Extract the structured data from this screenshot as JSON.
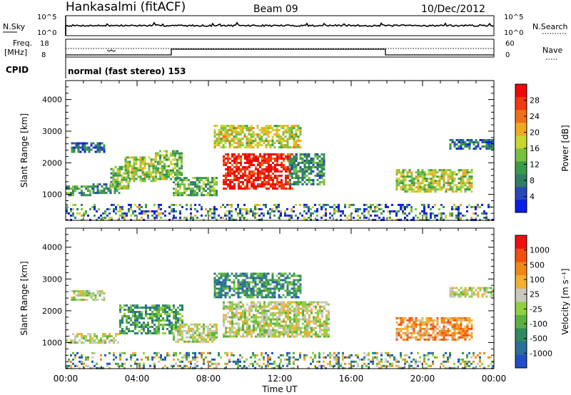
{
  "header": {
    "station": "Hankasalmi (fitACF)",
    "beam": "Beam 09",
    "date": "10/Dec/2012"
  },
  "noise_panel": {
    "left_label": "N.Sky",
    "right_label": "N.Search",
    "left_ticks": [
      "10^5",
      "10^0"
    ],
    "right_ticks": [
      "10^5",
      "10^0"
    ]
  },
  "freq_panel": {
    "label_line1": "Freq.",
    "label_line2": "[MHz]",
    "right_label": "Nave",
    "left_ticks": [
      "18",
      "8"
    ],
    "right_ticks": [
      "60",
      "0"
    ]
  },
  "cpid": {
    "label": "CPID",
    "text": "normal (fast stereo) 153"
  },
  "chart_data": [
    {
      "type": "heatmap",
      "title": "",
      "xlabel": "Time UT",
      "ylabel": "Slant Range [km]",
      "xlim": [
        "00:00",
        "24:00"
      ],
      "ylim": [
        180,
        4600
      ],
      "y_ticks": [
        "4000",
        "3000",
        "2000",
        "1000"
      ],
      "x_ticks": [
        "00:00",
        "04:00",
        "08:00",
        "12:00",
        "16:00",
        "20:00",
        "00:00"
      ],
      "colorbar": {
        "label": "Power [dB]",
        "tick_labels": [
          "28",
          "24",
          "20",
          "16",
          "12",
          "8",
          "4"
        ],
        "range": [
          0,
          30
        ],
        "colors": [
          "#0a1ee6",
          "#2a47b8",
          "#2f7d66",
          "#3a9a4a",
          "#78c040",
          "#c8d630",
          "#f0a820",
          "#f07018",
          "#f03a10",
          "#f00808"
        ]
      },
      "regions": [
        {
          "t0": 0.3,
          "t1": 2.2,
          "r0": 2350,
          "r1": 2650,
          "level": 0.22
        },
        {
          "t0": 0.0,
          "t1": 1.5,
          "r0": 1000,
          "r1": 1280,
          "level": 0.35
        },
        {
          "t0": 1.5,
          "t1": 3.0,
          "r0": 1050,
          "r1": 1350,
          "level": 0.3
        },
        {
          "t0": 2.5,
          "t1": 3.5,
          "r0": 1200,
          "r1": 1900,
          "level": 0.45
        },
        {
          "t0": 3.3,
          "t1": 5.0,
          "r0": 1400,
          "r1": 2200,
          "level": 0.5
        },
        {
          "t0": 5.0,
          "t1": 6.5,
          "r0": 1500,
          "r1": 2400,
          "level": 0.45
        },
        {
          "t0": 6.0,
          "t1": 8.5,
          "r0": 1000,
          "r1": 1550,
          "level": 0.4
        },
        {
          "t0": 8.3,
          "t1": 13.2,
          "r0": 2500,
          "r1": 3200,
          "level": 0.55
        },
        {
          "t0": 8.8,
          "t1": 13.0,
          "r0": 1200,
          "r1": 2300,
          "level": 0.92
        },
        {
          "t0": 12.5,
          "t1": 14.5,
          "r0": 1300,
          "r1": 2300,
          "level": 0.3
        },
        {
          "t0": 18.5,
          "t1": 22.8,
          "r0": 1100,
          "r1": 1800,
          "level": 0.5
        },
        {
          "t0": 21.5,
          "t1": 24.0,
          "r0": 2450,
          "r1": 2750,
          "level": 0.22
        },
        {
          "t0": 0.0,
          "t1": 24.0,
          "r0": 200,
          "r1": 700,
          "level": 0.25
        }
      ]
    },
    {
      "type": "heatmap",
      "title": "",
      "xlabel": "Time UT",
      "ylabel": "Slant Range [km]",
      "xlim": [
        "00:00",
        "24:00"
      ],
      "ylim": [
        180,
        4600
      ],
      "y_ticks": [
        "4000",
        "3000",
        "2000",
        "1000"
      ],
      "x_ticks": [
        "00:00",
        "04:00",
        "08:00",
        "12:00",
        "16:00",
        "20:00",
        "00:00"
      ],
      "colorbar": {
        "label": "Velocity [m s⁻¹]",
        "tick_labels": [
          "1000",
          "500",
          "100",
          "25",
          "-25",
          "-100",
          "-500",
          "-1000"
        ],
        "range": [
          -1200,
          1200
        ],
        "colors": [
          "#2050c8",
          "#2a6e9a",
          "#2f8a60",
          "#5cb040",
          "#90d040",
          "#c8c8c0",
          "#f0b030",
          "#f08818",
          "#f05010",
          "#f01010"
        ]
      },
      "regions": [
        {
          "t0": 0.3,
          "t1": 2.2,
          "r0": 2350,
          "r1": 2650,
          "level": 0.5
        },
        {
          "t0": 0.0,
          "t1": 3.0,
          "r0": 1000,
          "r1": 1300,
          "level": 0.5
        },
        {
          "t0": 3.0,
          "t1": 6.5,
          "r0": 1300,
          "r1": 2200,
          "level": 0.3
        },
        {
          "t0": 6.0,
          "t1": 8.5,
          "r0": 1000,
          "r1": 1600,
          "level": 0.5
        },
        {
          "t0": 8.3,
          "t1": 13.2,
          "r0": 2400,
          "r1": 3200,
          "level": 0.25
        },
        {
          "t0": 8.8,
          "t1": 14.8,
          "r0": 1200,
          "r1": 2300,
          "level": 0.5
        },
        {
          "t0": 18.5,
          "t1": 22.8,
          "r0": 1100,
          "r1": 1800,
          "level": 0.72
        },
        {
          "t0": 21.5,
          "t1": 24.0,
          "r0": 2450,
          "r1": 2750,
          "level": 0.5
        },
        {
          "t0": 0.0,
          "t1": 24.0,
          "r0": 200,
          "r1": 700,
          "level": 0.38
        }
      ]
    }
  ]
}
